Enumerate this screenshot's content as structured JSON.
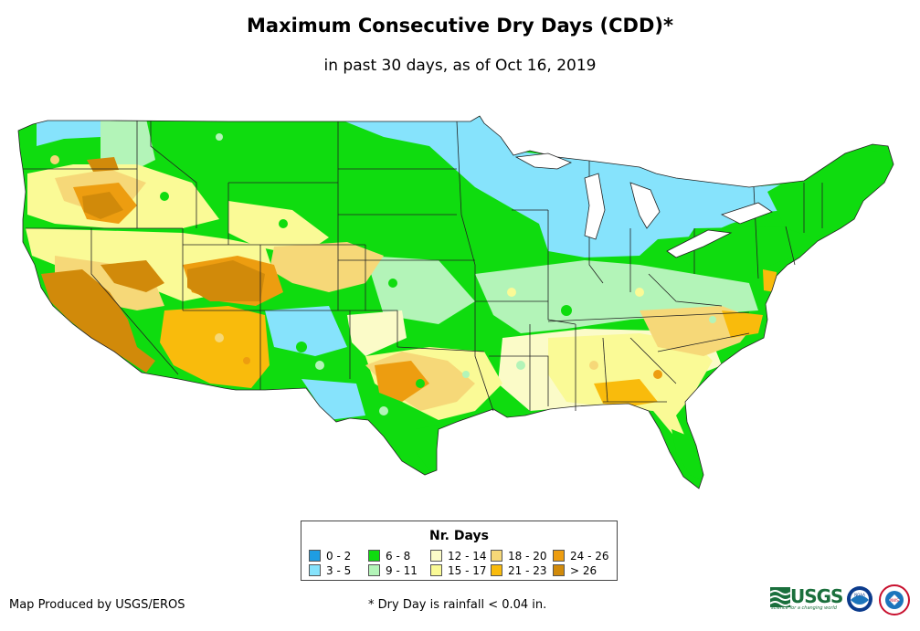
{
  "title": "Maximum Consecutive Dry Days (CDD)*",
  "subtitle": "in past 30 days, as of Oct 16, 2019",
  "legend": {
    "title": "Nr. Days",
    "items": [
      {
        "label": "0 - 2",
        "color": "#1e9de3"
      },
      {
        "label": "3 - 5",
        "color": "#86e3fc"
      },
      {
        "label": "6 - 8",
        "color": "#0fdc0f"
      },
      {
        "label": "9 - 11",
        "color": "#b3f4b8"
      },
      {
        "label": "12 - 14",
        "color": "#fbfbc8"
      },
      {
        "label": "15 - 17",
        "color": "#fafa96"
      },
      {
        "label": "18 - 20",
        "color": "#f6d878"
      },
      {
        "label": "21 - 23",
        "color": "#f9bb0c"
      },
      {
        "label": "24 - 26",
        "color": "#ed9d10"
      },
      {
        "label": "> 26",
        "color": "#d18a0a"
      }
    ]
  },
  "credit": "Map Produced by USGS/EROS",
  "footnote": "* Dry Day is rainfall < 0.04 in.",
  "logos": {
    "usgs": "USGS",
    "usgs_tagline": "science for a changing world",
    "noaa": "NOAA",
    "nws": "NWS"
  }
}
